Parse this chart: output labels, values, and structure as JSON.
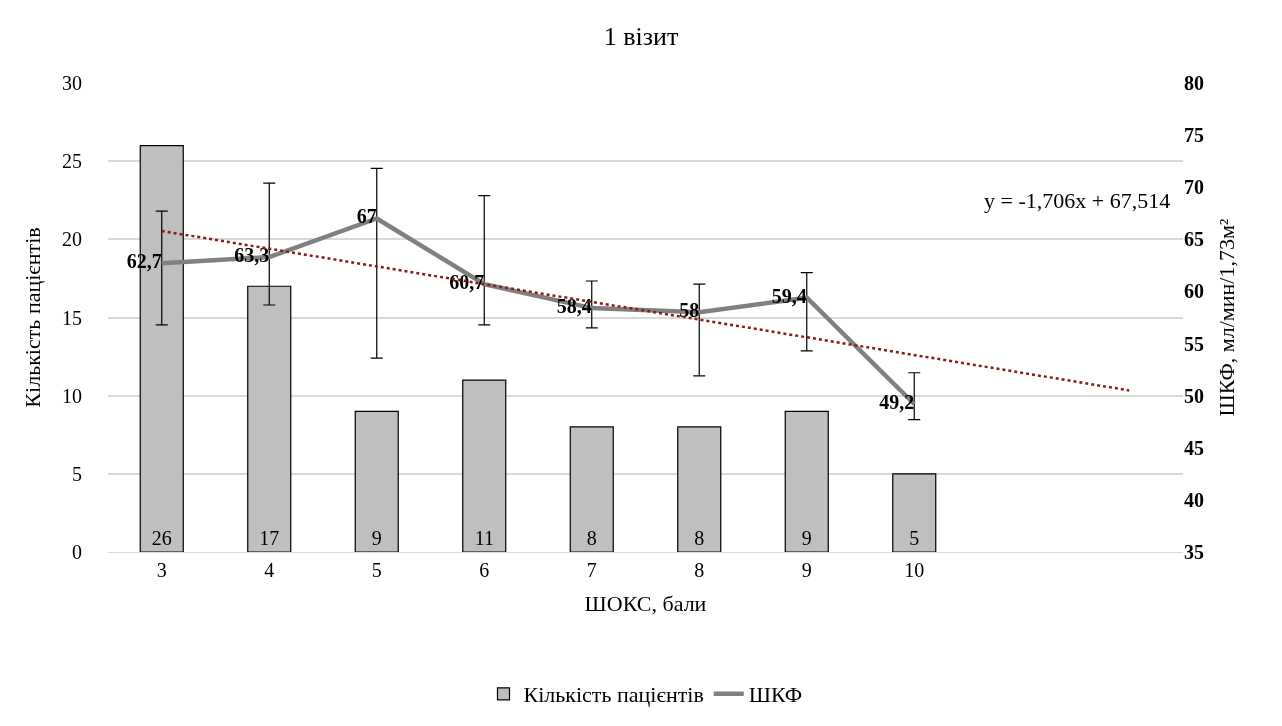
{
  "chart_data": {
    "type": "bar",
    "title": "1 візит",
    "xlabel": "ШОКС, бали",
    "ylabel": "Кількість пацієнтів",
    "y2label": "ШКФ, мл/мин/1,73м²",
    "x": [
      3,
      4,
      5,
      6,
      7,
      8,
      9,
      10
    ],
    "xlim": [
      2.5,
      12.5
    ],
    "xticks": [
      3,
      4,
      5,
      6,
      7,
      8,
      9,
      10
    ],
    "ylim": [
      0,
      30
    ],
    "yticks": [
      0,
      5,
      10,
      15,
      20,
      25,
      30
    ],
    "y2lim": [
      35,
      80
    ],
    "y2ticks": [
      35,
      40,
      45,
      50,
      55,
      60,
      65,
      70,
      75,
      80
    ],
    "grid": "y",
    "legend": "bottom",
    "annotations": [
      "y = -1,706x + 67,514"
    ],
    "series": [
      {
        "name": "Кількість пацієнтів",
        "color": "#bfbfbf",
        "values": [
          26,
          17,
          9,
          11,
          8,
          8,
          9,
          5
        ],
        "value_labels": [
          "26",
          "17",
          "9",
          "11",
          "8",
          "8",
          "9",
          "5"
        ]
      },
      {
        "name": "ШКФ",
        "type": "line",
        "axis": "y2",
        "color": "#808080",
        "values": [
          62.7,
          63.3,
          67,
          60.7,
          58.4,
          58,
          59.4,
          49.2
        ],
        "value_labels": [
          "62,7",
          "63,3",
          "67",
          "60,7",
          "58,4",
          "58",
          "59,4",
          "49,2"
        ],
        "errors": [
          [
            56.8,
            67.7
          ],
          [
            58.7,
            70.4
          ],
          [
            53.6,
            71.8
          ],
          [
            56.8,
            69.2
          ],
          [
            56.5,
            61.0
          ],
          [
            51.9,
            60.7
          ],
          [
            54.3,
            61.8
          ],
          [
            47.7,
            52.2
          ]
        ]
      },
      {
        "type": "line",
        "axis": "y2",
        "color": "#8b1a1a",
        "line_style": "dotted",
        "marker": "none",
        "x": [
          3,
          12
        ],
        "values": [
          65.8,
          50.5
        ]
      }
    ]
  }
}
